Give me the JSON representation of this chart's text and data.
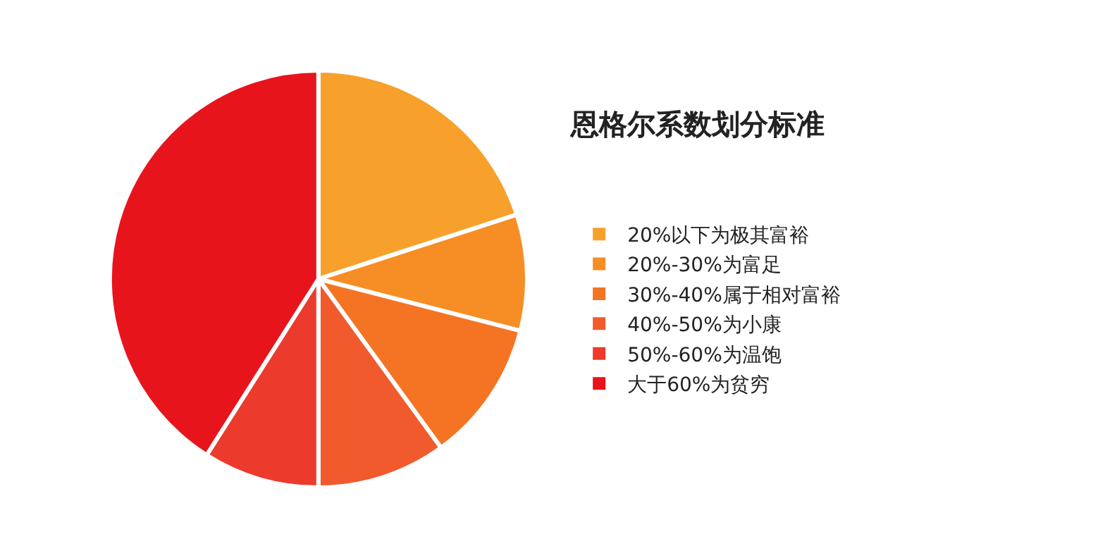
{
  "chart_data": {
    "type": "pie",
    "title": "恩格尔系数划分标准",
    "categories": [
      "20%以下为极其富裕",
      "20%-30%为富足",
      "30%-40%属于相对富裕",
      "40%-50%为小康",
      "50%-60%为温饱",
      "大于60%为贫穷"
    ],
    "values": [
      20,
      9,
      11,
      10,
      9,
      41
    ],
    "colors": [
      "#f7a12c",
      "#f68e25",
      "#f47424",
      "#f05a2c",
      "#ec3a2c",
      "#e8141c"
    ],
    "legend": "right"
  }
}
